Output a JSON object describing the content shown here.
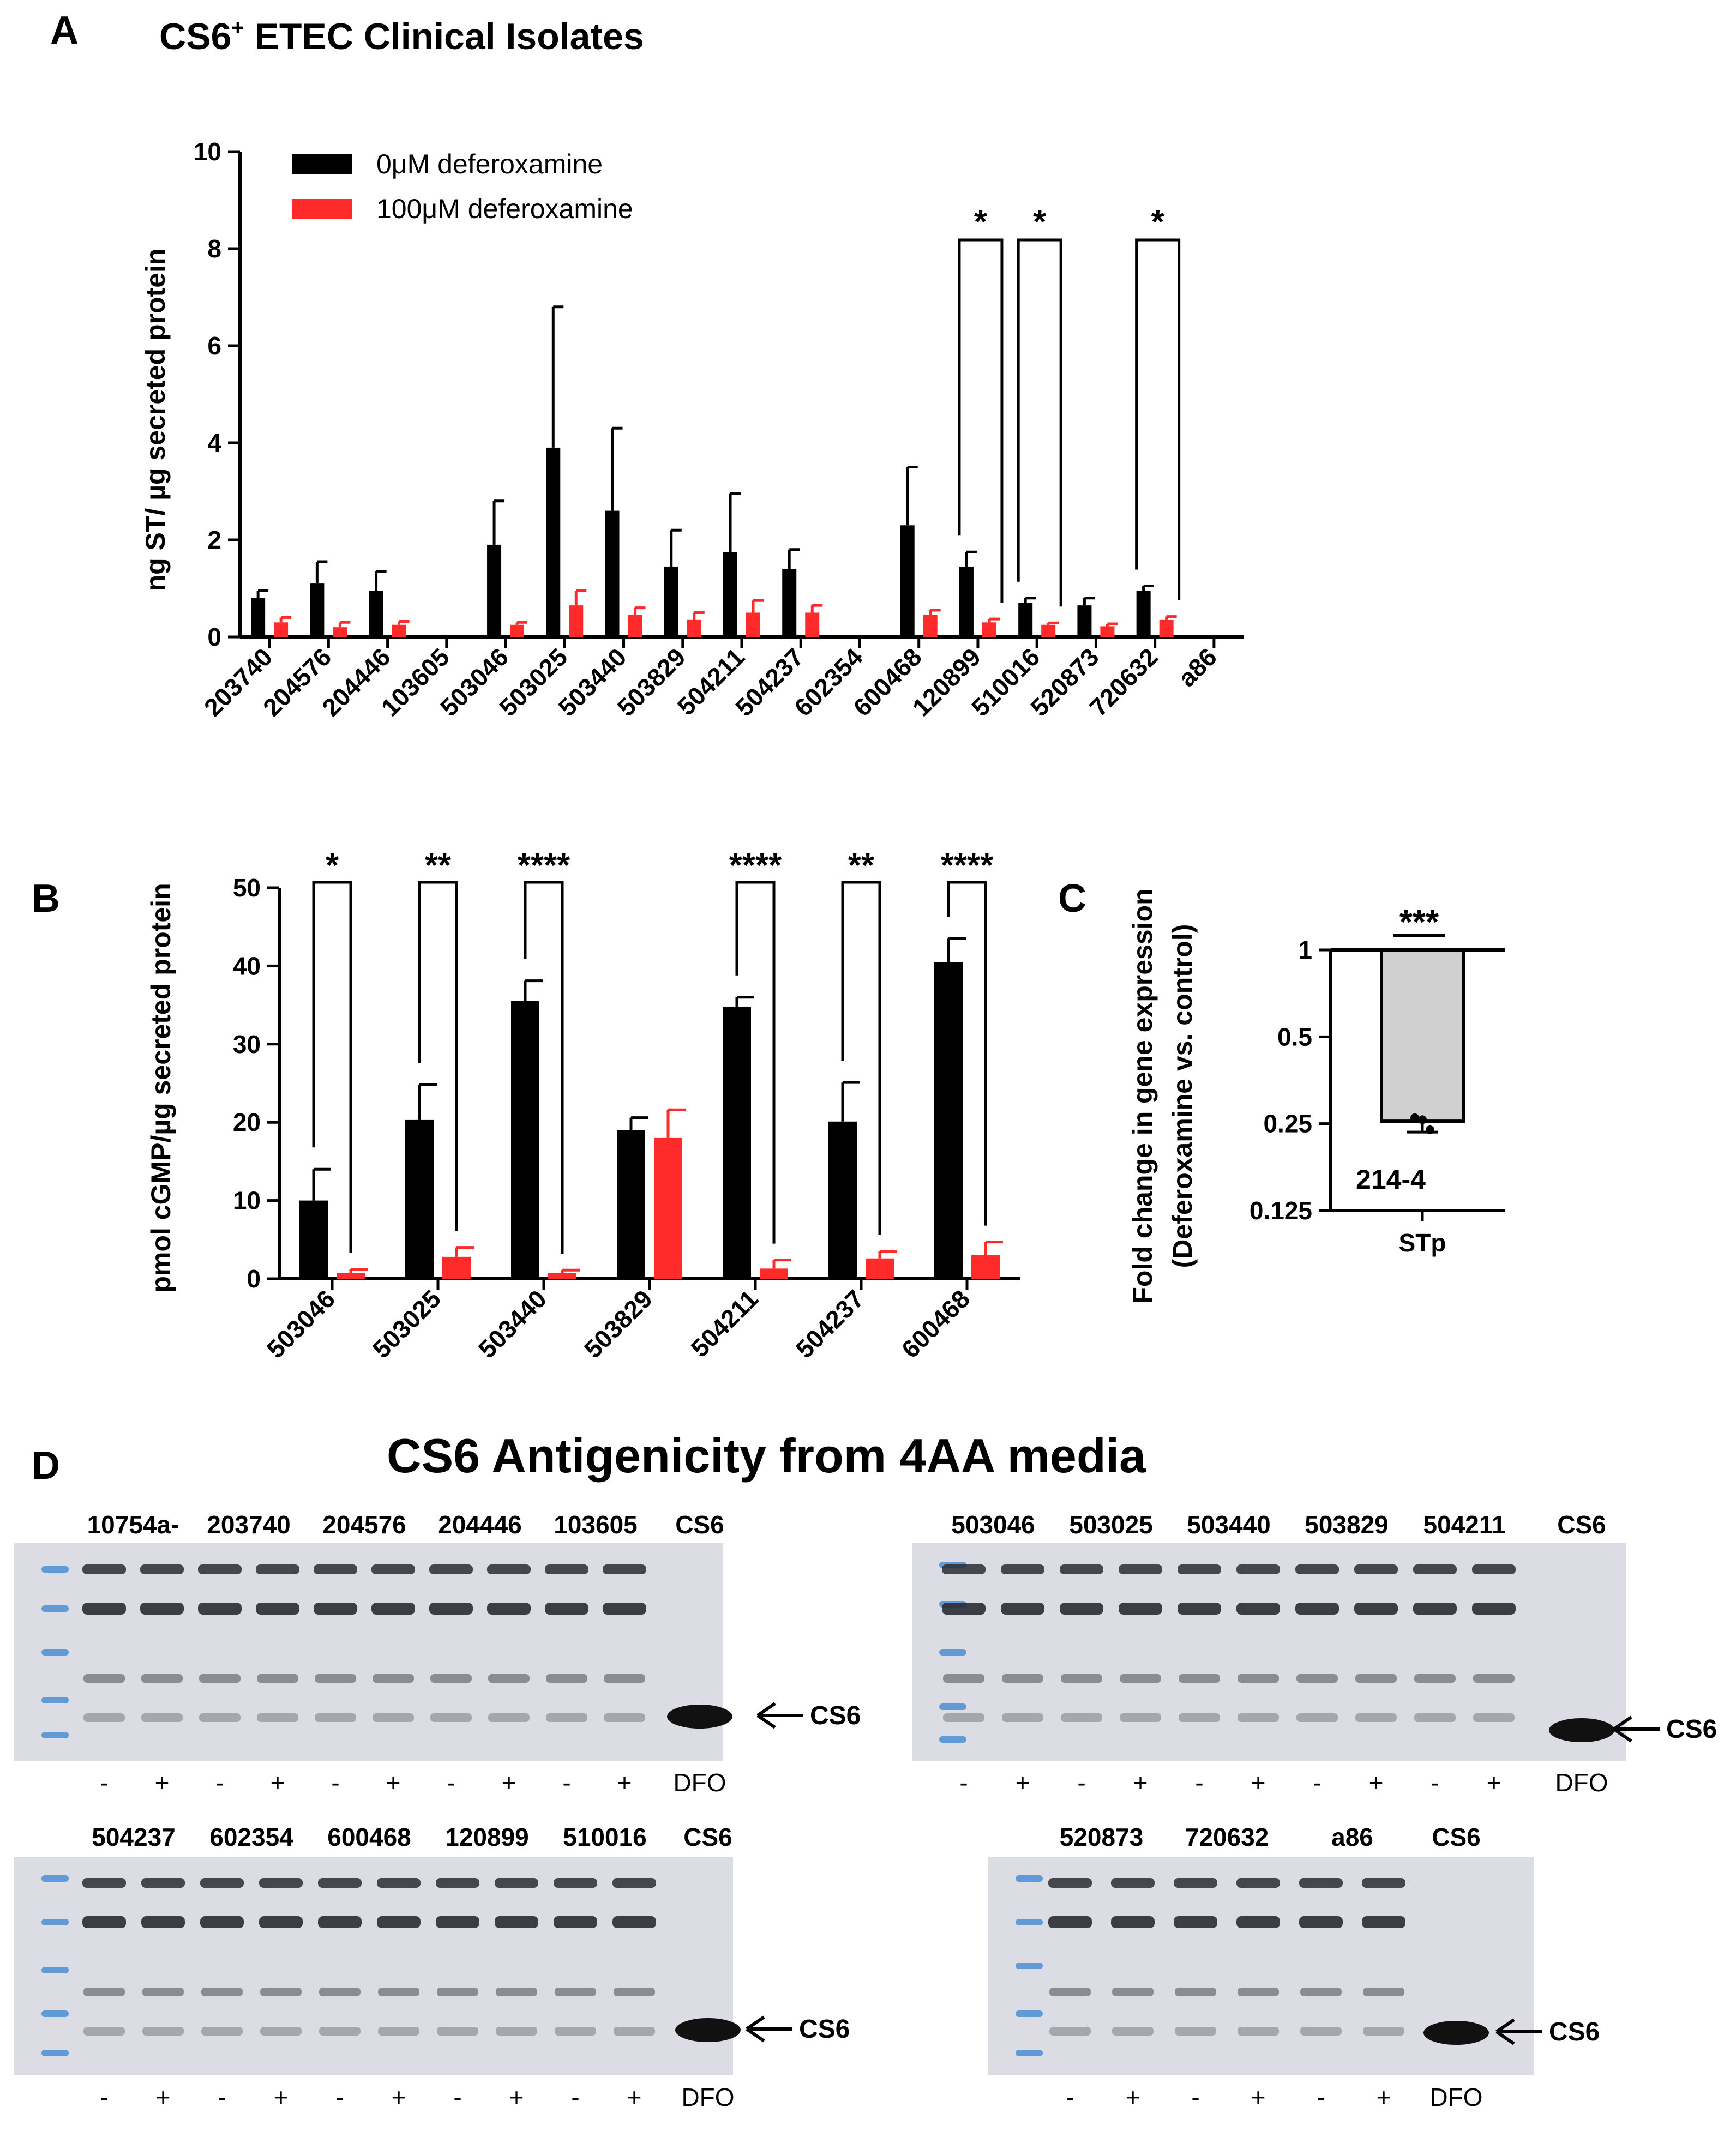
{
  "colors": {
    "black_bar": "#000000",
    "red_bar": "#ff2a2a",
    "grey_bar": "#d0d0d0",
    "gel_bg": "#dcdce4",
    "band": "#2b2b33",
    "ladder": "#4a8fd6"
  },
  "panel_a": {
    "letter": "A",
    "title_prefix": "CS6",
    "title_sup": "+",
    "title_rest": " ETEC Clinical Isolates",
    "legend": [
      "0μM deferoxamine",
      "100μM deferoxamine"
    ],
    "significance": [
      "*",
      "*",
      "*"
    ]
  },
  "panel_b": {
    "letter": "B",
    "significance": [
      "*",
      "**",
      "****",
      "****",
      "**",
      "****"
    ]
  },
  "panel_c": {
    "letter": "C",
    "significance": "***",
    "strain_label": "214-4"
  },
  "chart_data": [
    {
      "type": "bar",
      "panel": "A",
      "ylabel": "ng ST/ µg secreted protein",
      "ylim": [
        0,
        10
      ],
      "yticks": [
        "0",
        "2",
        "4",
        "6",
        "8",
        "10"
      ],
      "categories": [
        "203740",
        "204576",
        "204446",
        "103605",
        "503046",
        "503025",
        "503440",
        "503829",
        "504211",
        "504237",
        "602354",
        "600468",
        "120899",
        "510016",
        "520873",
        "720632",
        "a86"
      ],
      "series": [
        {
          "name": "0μM deferoxamine",
          "values": [
            0.8,
            1.1,
            0.95,
            0.03,
            1.9,
            3.9,
            2.6,
            1.45,
            1.75,
            1.4,
            0.02,
            2.3,
            1.45,
            0.7,
            0.65,
            0.95,
            0.03
          ],
          "errors": [
            0.15,
            0.45,
            0.4,
            0,
            0.9,
            2.9,
            1.7,
            0.75,
            1.2,
            0.4,
            0,
            1.2,
            0.3,
            0.1,
            0.15,
            0.1,
            0
          ]
        },
        {
          "name": "100μM deferoxamine",
          "values": [
            0.3,
            0.2,
            0.25,
            0,
            0.25,
            0.65,
            0.45,
            0.35,
            0.5,
            0.5,
            0,
            0.45,
            0.3,
            0.25,
            0.22,
            0.35,
            0
          ],
          "errors": [
            0.1,
            0.1,
            0.07,
            0,
            0.05,
            0.3,
            0.15,
            0.15,
            0.25,
            0.15,
            0,
            0.1,
            0.07,
            0.04,
            0.05,
            0.07,
            0
          ]
        }
      ]
    },
    {
      "type": "bar",
      "panel": "B",
      "ylabel": "pmol cGMP/µg secreted protein",
      "ylim": [
        0,
        50
      ],
      "yticks": [
        "0",
        "10",
        "20",
        "30",
        "40",
        "50"
      ],
      "categories": [
        "503046",
        "503025",
        "503440",
        "503829",
        "504211",
        "504237",
        "600468"
      ],
      "series": [
        {
          "name": "0μM deferoxamine",
          "values": [
            10,
            20.3,
            35.5,
            19,
            34.8,
            20.1,
            40.5
          ],
          "errors": [
            4,
            4.5,
            2.6,
            1.6,
            1.2,
            5,
            3
          ]
        },
        {
          "name": "100μM deferoxamine",
          "values": [
            0.7,
            2.8,
            0.7,
            18,
            1.3,
            2.6,
            3
          ],
          "errors": [
            0.5,
            1.2,
            0.4,
            3.6,
            1.1,
            0.9,
            1.7
          ]
        }
      ]
    },
    {
      "type": "bar",
      "panel": "C",
      "ylabel": "Fold change in gene expression",
      "ylabel2": "(Deferoxamine vs. control)",
      "scale": "log2",
      "yticks": [
        "1",
        "0.5",
        "0.25",
        "0.125"
      ],
      "categories": [
        "STp"
      ],
      "values": [
        0.255
      ],
      "points": [
        0.262,
        0.258,
        0.238
      ]
    }
  ],
  "panel_d": {
    "letter": "D",
    "title": "CS6 Antigenicity from 4AA media",
    "gels": [
      {
        "labels": [
          "10754a-",
          "203740",
          "204576",
          "204446",
          "103605",
          "CS6"
        ],
        "signs": [
          "-",
          "+",
          "-",
          "+",
          "-",
          "+",
          "-",
          "+",
          "-",
          "+",
          "DFO"
        ],
        "arrow": "CS6"
      },
      {
        "labels": [
          "503046",
          "503025",
          "503440",
          "503829",
          "504211",
          "CS6"
        ],
        "signs": [
          "-",
          "+",
          "-",
          "+",
          "-",
          "+",
          "-",
          "+",
          "-",
          "+",
          "DFO"
        ],
        "arrow": "CS6"
      },
      {
        "labels": [
          "504237",
          "602354",
          "600468",
          "120899",
          "510016",
          "CS6"
        ],
        "signs": [
          "-",
          "+",
          "-",
          "+",
          "-",
          "+",
          "-",
          "+",
          "-",
          "+",
          "DFO"
        ],
        "arrow": "CS6"
      },
      {
        "labels": [
          "520873",
          "720632",
          "a86",
          "CS6"
        ],
        "signs": [
          "-",
          "+",
          "-",
          "+",
          "-",
          "+",
          "DFO"
        ],
        "arrow": "CS6"
      }
    ]
  }
}
